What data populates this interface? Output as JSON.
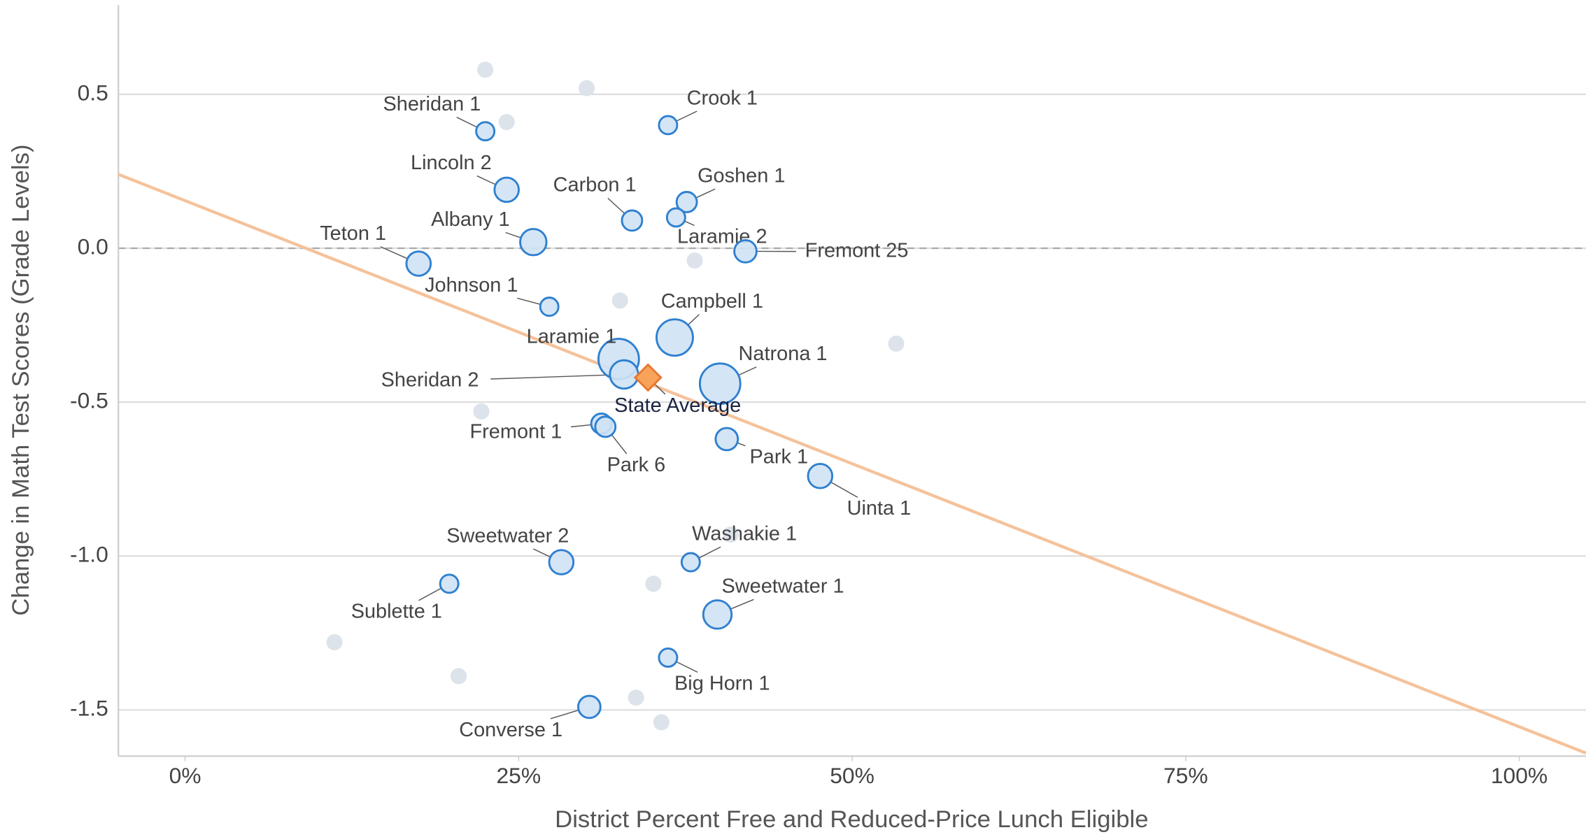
{
  "chart_data": {
    "type": "scatter",
    "x_label": "District Percent Free and Reduced-Price Lunch Eligible",
    "y_label": "Change in Math Test Scores (Grade Levels)",
    "xlim": [
      -5,
      105
    ],
    "ylim": [
      -1.65,
      0.79
    ],
    "xticks": [
      {
        "value": 0,
        "label": "0%"
      },
      {
        "value": 25,
        "label": "25%"
      },
      {
        "value": 50,
        "label": "50%"
      },
      {
        "value": 75,
        "label": "75%"
      },
      {
        "value": 100,
        "label": "100%"
      }
    ],
    "yticks": [
      0.5,
      {
        "value": 0,
        "label": "0.0"
      },
      -0.5,
      {
        "value": -1,
        "label": "-1.0"
      },
      -1.5
    ],
    "grid": true,
    "reference_y": 0,
    "series": [
      {
        "fill": "#cfe2f5",
        "color": "#2f80d0",
        "labels": [
          "Sheridan 1",
          "Crook 1",
          "Lincoln 2",
          "Carbon 1",
          "Goshen 1",
          "Laramie 2",
          "Albany 1",
          "Teton 1",
          "Fremont 25",
          "Johnson 1",
          "Campbell 1",
          "Laramie 1",
          "Sheridan 2",
          "Natrona 1",
          "Fremont 1",
          "Park 6",
          "Park 1",
          "Uinta 1",
          "Sweetwater 2",
          "Washakie 1",
          "Sublette 1",
          "Sweetwater 1",
          "Big Horn 1",
          "Converse 1"
        ],
        "x": [
          22.5,
          36.2,
          24.1,
          33.5,
          37.6,
          36.8,
          26.1,
          17.5,
          42.0,
          27.3,
          36.7,
          32.5,
          32.9,
          40.1,
          31.2,
          31.5,
          40.6,
          47.6,
          28.2,
          37.9,
          19.8,
          39.9,
          36.2,
          30.3
        ],
        "values": [
          0.38,
          0.4,
          0.19,
          0.09,
          0.15,
          0.1,
          0.02,
          -0.05,
          -0.01,
          -0.19,
          -0.29,
          -0.36,
          -0.41,
          -0.44,
          -0.57,
          -0.58,
          -0.62,
          -0.74,
          -1.02,
          -1.02,
          -1.09,
          -1.19,
          -1.33,
          -1.49
        ],
        "sizes": [
          9,
          9,
          12,
          10,
          10,
          9,
          13,
          12,
          11,
          9,
          18,
          20,
          14,
          20,
          10,
          10,
          11,
          12,
          12,
          9,
          9,
          14,
          9,
          11
        ]
      },
      {
        "color": "#dde3ea",
        "x": [
          22.5,
          30.1,
          24.1,
          38.2,
          32.6,
          53.3,
          22.2,
          40.9,
          35.1,
          11.2,
          20.5,
          33.8,
          35.7
        ],
        "values": [
          0.58,
          0.52,
          0.41,
          -0.04,
          -0.17,
          -0.31,
          -0.53,
          -0.93,
          -1.09,
          -1.28,
          -1.39,
          -1.46,
          -1.54
        ]
      }
    ],
    "highlight": {
      "label": "State Average",
      "x": 34.7,
      "y": -0.42,
      "color": "#f7a35c",
      "stroke": "#e8772e"
    },
    "trendline": {
      "x": [
        -5,
        105
      ],
      "y": [
        0.24,
        -1.64
      ],
      "color": "#f5c29a"
    }
  }
}
